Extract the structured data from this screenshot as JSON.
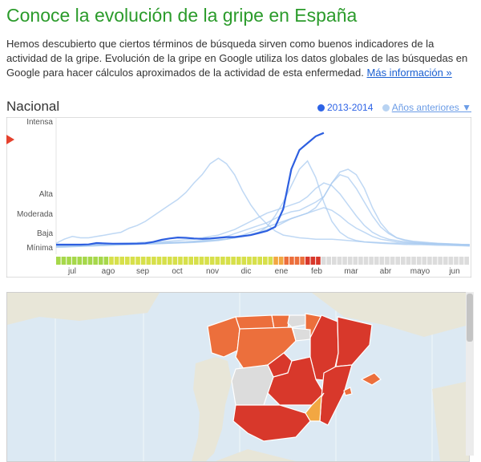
{
  "page": {
    "title": "Conoce la evolución de la gripe en España",
    "intro": "Hemos descubierto que ciertos términos de búsqueda sirven como buenos indicadores de la actividad de la gripe. Evolución de la gripe en Google utiliza los datos globales de las búsquedas en Google para hacer cálculos aproximados de la actividad de esta enfermedad.",
    "more_link": "Más información »"
  },
  "region_label": "Nacional",
  "legend": {
    "current": "2013-2014",
    "previous": "Años anteriores ▼"
  },
  "colors": {
    "current": "#2d5fe0",
    "previous": "#a9cbf0",
    "minima": "#a6d84a",
    "baja": "#d7e04a",
    "moderada": "#f2a742",
    "alta": "#ec6f3c",
    "intensa": "#d8382b",
    "empty": "#dcdcdc",
    "title": "#2b9b2b",
    "water": "#dce9f3",
    "land": "#e8e6d8"
  },
  "chart_data": {
    "type": "line",
    "y_scale_labels": [
      "Intensa",
      "Alta",
      "Moderada",
      "Baja",
      "Mínima"
    ],
    "x_tick_labels": [
      "jul",
      "ago",
      "sep",
      "oct",
      "nov",
      "dic",
      "ene",
      "feb",
      "mar",
      "abr",
      "mayo",
      "jun"
    ],
    "series": [
      {
        "name": "2013-2014",
        "values": [
          0.7,
          0.7,
          0.7,
          0.7,
          0.72,
          0.82,
          0.79,
          0.77,
          0.77,
          0.77,
          0.78,
          0.8,
          0.9,
          1.05,
          1.15,
          1.22,
          1.2,
          1.15,
          1.12,
          1.15,
          1.2,
          1.25,
          1.25,
          1.32,
          1.4,
          1.55,
          1.7,
          2.0,
          3.3,
          6.2,
          7.6,
          8.1,
          8.6,
          8.85
        ]
      },
      {
        "name": "",
        "values": [
          0.8,
          1.1,
          1.3,
          1.2,
          1.2,
          1.3,
          1.4,
          1.5,
          1.6,
          1.9,
          2.1,
          2.4,
          2.8,
          3.2,
          3.6,
          4.0,
          4.5,
          5.2,
          5.8,
          6.6,
          7.0,
          6.6,
          5.8,
          4.6,
          3.6,
          2.8,
          2.2,
          1.7,
          1.4,
          1.3,
          1.2,
          1.15,
          1.1,
          1.1,
          1.1,
          1.05,
          1.0,
          0.95,
          0.9,
          0.88,
          0.85,
          0.82,
          0.8,
          0.78,
          0.78,
          0.76,
          0.75,
          0.75,
          0.74,
          0.72,
          0.7,
          0.7
        ]
      },
      {
        "name": "",
        "values": [
          0.6,
          0.62,
          0.64,
          0.66,
          0.68,
          0.7,
          0.72,
          0.72,
          0.74,
          0.76,
          0.78,
          0.8,
          0.82,
          0.84,
          0.86,
          0.88,
          0.9,
          0.95,
          1.0,
          1.1,
          1.2,
          1.3,
          1.5,
          1.7,
          1.9,
          2.1,
          2.3,
          2.6,
          2.9,
          3.1,
          3.2,
          3.5,
          3.8,
          4.2,
          5.2,
          6.0,
          6.2,
          5.8,
          4.8,
          3.4,
          2.3,
          1.6,
          1.2,
          1.0,
          0.9,
          0.85,
          0.8,
          0.78,
          0.76,
          0.74,
          0.72,
          0.7
        ]
      },
      {
        "name": "",
        "values": [
          0.5,
          0.52,
          0.55,
          0.58,
          0.6,
          0.62,
          0.65,
          0.68,
          0.7,
          0.72,
          0.74,
          0.76,
          0.78,
          0.8,
          0.82,
          0.85,
          0.88,
          0.9,
          0.95,
          1.0,
          1.05,
          1.1,
          1.2,
          1.3,
          1.4,
          1.6,
          2.0,
          2.8,
          3.8,
          5.0,
          6.2,
          6.8,
          5.6,
          3.8,
          2.4,
          1.6,
          1.2,
          1.0,
          0.9,
          0.85,
          0.8,
          0.78,
          0.75,
          0.72,
          0.7,
          0.7,
          0.68,
          0.66,
          0.65,
          0.64,
          0.62,
          0.6
        ]
      },
      {
        "name": "",
        "values": [
          0.6,
          0.6,
          0.62,
          0.62,
          0.64,
          0.65,
          0.66,
          0.68,
          0.7,
          0.72,
          0.74,
          0.76,
          0.78,
          0.8,
          0.82,
          0.85,
          0.88,
          0.9,
          0.95,
          1.0,
          1.05,
          1.1,
          1.2,
          1.3,
          1.45,
          1.6,
          1.8,
          2.0,
          2.3,
          2.6,
          2.8,
          3.0,
          3.4,
          4.2,
          5.2,
          5.8,
          5.6,
          4.8,
          3.8,
          2.8,
          2.0,
          1.5,
          1.2,
          1.05,
          0.95,
          0.9,
          0.85,
          0.8,
          0.78,
          0.75,
          0.72,
          0.7
        ]
      },
      {
        "name": "",
        "values": [
          0.65,
          0.66,
          0.68,
          0.7,
          0.72,
          0.74,
          0.76,
          0.78,
          0.8,
          0.82,
          0.85,
          0.88,
          0.9,
          0.92,
          0.95,
          1.0,
          1.05,
          1.1,
          1.2,
          1.3,
          1.4,
          1.6,
          1.8,
          2.1,
          2.4,
          2.7,
          3.0,
          3.2,
          3.4,
          3.6,
          3.8,
          4.2,
          4.8,
          5.2,
          5.0,
          4.4,
          3.6,
          2.8,
          2.1,
          1.6,
          1.3,
          1.1,
          1.0,
          0.9,
          0.85,
          0.8,
          0.78,
          0.75,
          0.72,
          0.7,
          0.68,
          0.66
        ]
      },
      {
        "name": "",
        "values": [
          0.55,
          0.56,
          0.57,
          0.58,
          0.6,
          0.62,
          0.64,
          0.66,
          0.68,
          0.7,
          0.72,
          0.74,
          0.76,
          0.78,
          0.8,
          0.82,
          0.84,
          0.86,
          0.9,
          0.95,
          1.0,
          1.1,
          1.25,
          1.4,
          1.6,
          1.8,
          2.0,
          2.2,
          2.4,
          2.6,
          2.8,
          3.0,
          3.2,
          3.4,
          3.2,
          2.8,
          2.3,
          1.9,
          1.6,
          1.3,
          1.1,
          1.0,
          0.9,
          0.85,
          0.8,
          0.78,
          0.75,
          0.72,
          0.7,
          0.68,
          0.65,
          0.62
        ]
      }
    ],
    "intensity_bar": [
      "minima",
      "minima",
      "minima",
      "minima",
      "minima",
      "minima",
      "minima",
      "minima",
      "minima",
      "minima",
      "baja",
      "baja",
      "baja",
      "baja",
      "baja",
      "baja",
      "baja",
      "baja",
      "baja",
      "baja",
      "baja",
      "baja",
      "baja",
      "baja",
      "baja",
      "baja",
      "baja",
      "baja",
      "baja",
      "baja",
      "baja",
      "baja",
      "baja",
      "baja",
      "baja",
      "baja",
      "baja",
      "baja",
      "baja",
      "baja",
      "baja",
      "moderada",
      "moderada",
      "alta",
      "alta",
      "alta",
      "alta",
      "intensa",
      "intensa",
      "intensa",
      "empty",
      "empty",
      "empty",
      "empty",
      "empty",
      "empty",
      "empty",
      "empty",
      "empty",
      "empty",
      "empty",
      "empty",
      "empty",
      "empty",
      "empty",
      "empty",
      "empty",
      "empty",
      "empty",
      "empty",
      "empty",
      "empty",
      "empty",
      "empty",
      "empty",
      "empty",
      "empty",
      "empty"
    ],
    "ylim": [
      0,
      10
    ]
  },
  "map": {
    "regions": [
      {
        "name": "galicia",
        "level": "alta"
      },
      {
        "name": "asturias",
        "level": "alta"
      },
      {
        "name": "cantabria",
        "level": "alta"
      },
      {
        "name": "pais-vasco",
        "level": "empty"
      },
      {
        "name": "navarra",
        "level": "alta"
      },
      {
        "name": "aragon",
        "level": "intensa"
      },
      {
        "name": "cataluna",
        "level": "intensa"
      },
      {
        "name": "castilla-leon",
        "level": "alta"
      },
      {
        "name": "la-rioja",
        "level": "empty"
      },
      {
        "name": "madrid",
        "level": "intensa"
      },
      {
        "name": "castilla-la-mancha",
        "level": "intensa"
      },
      {
        "name": "extremadura",
        "level": "empty"
      },
      {
        "name": "valencia",
        "level": "intensa"
      },
      {
        "name": "murcia",
        "level": "moderada"
      },
      {
        "name": "andalucia",
        "level": "intensa"
      },
      {
        "name": "baleares",
        "level": "alta"
      }
    ]
  }
}
